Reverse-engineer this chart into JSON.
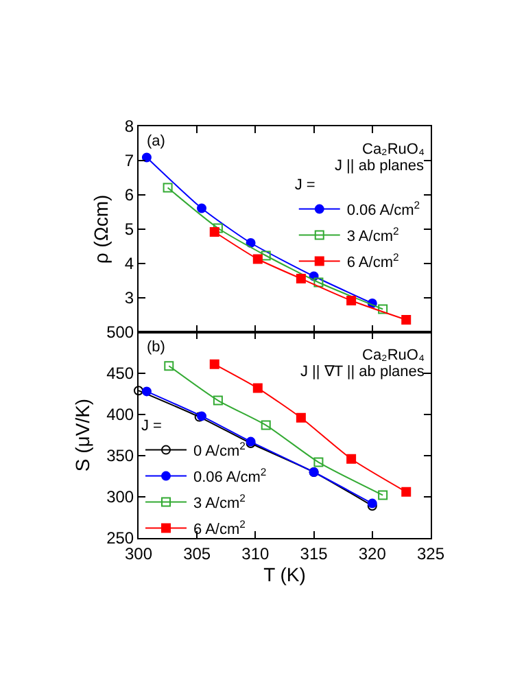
{
  "chart_data": [
    {
      "type": "line",
      "annotations": [
        "(a)",
        "Ca₂RuO₄",
        "J || ab planes"
      ],
      "ylabel": "ρ (Ωcm)",
      "legend_title": "J =",
      "legend": "right",
      "tick_labels": "y",
      "xlim": [
        300,
        325
      ],
      "xticks": [
        {
          "value": 300,
          "label": null
        },
        {
          "value": 305,
          "label": null
        },
        {
          "value": 310,
          "label": null
        },
        {
          "value": 315,
          "label": null
        },
        {
          "value": 320,
          "label": null
        },
        {
          "value": 325,
          "label": null
        }
      ],
      "ylim": [
        2,
        8
      ],
      "yticks": [
        3,
        4,
        5,
        6,
        7,
        8
      ],
      "series": [
        {
          "name": "0.06 A/cm$^{2}$",
          "color": "#0000ff",
          "marker": "circle",
          "x": [
            300.7,
            305.4,
            309.6,
            315.0,
            320.0
          ],
          "values": [
            7.09,
            5.61,
            4.6,
            3.63,
            2.84
          ]
        },
        {
          "name": "3 A/cm$^{2}$",
          "color": "#33aa33",
          "marker": "square-open",
          "x": [
            302.5,
            306.8,
            310.9,
            315.4,
            320.9
          ],
          "values": [
            6.21,
            5.03,
            4.23,
            3.45,
            2.67
          ]
        },
        {
          "name": "6 A/cm$^{2}$",
          "color": "#ff0000",
          "marker": "square",
          "x": [
            306.5,
            310.2,
            313.9,
            318.2,
            322.9
          ],
          "values": [
            4.92,
            4.13,
            3.56,
            2.92,
            2.36
          ]
        }
      ]
    },
    {
      "type": "line",
      "annotations": [
        "(b)",
        "Ca₂RuO₄",
        "J || ∇T || ab planes"
      ],
      "xlabel": "T (K)",
      "ylabel": "S (μV/K)",
      "legend_title": "J =",
      "legend": "left",
      "xlim": [
        300,
        325
      ],
      "xticks": [
        300,
        305,
        310,
        315,
        320,
        325
      ],
      "ylim": [
        250,
        500
      ],
      "yticks": [
        250,
        300,
        350,
        400,
        450,
        500
      ],
      "series": [
        {
          "name": "0 A/cm$^{2}$",
          "color": "#000000",
          "marker": "circle-open",
          "x": [
            300.0,
            305.2,
            309.6,
            315.0,
            320.0
          ],
          "values": [
            429,
            397,
            365,
            330,
            289
          ]
        },
        {
          "name": "0.06 A/cm$^{2}$",
          "color": "#0000ff",
          "marker": "circle",
          "x": [
            300.7,
            305.4,
            309.6,
            315.0,
            320.0
          ],
          "values": [
            428,
            398,
            367,
            330,
            292
          ]
        },
        {
          "name": "3 A/cm$^{2}$",
          "color": "#33aa33",
          "marker": "square-open",
          "x": [
            302.6,
            306.8,
            310.9,
            315.4,
            320.9
          ],
          "values": [
            459,
            417,
            387,
            342,
            302
          ]
        },
        {
          "name": "6 A/cm$^{2}$",
          "color": "#ff0000",
          "marker": "square",
          "x": [
            306.5,
            310.2,
            313.9,
            318.2,
            322.9
          ],
          "values": [
            461,
            432,
            396,
            346,
            306
          ]
        }
      ]
    }
  ]
}
